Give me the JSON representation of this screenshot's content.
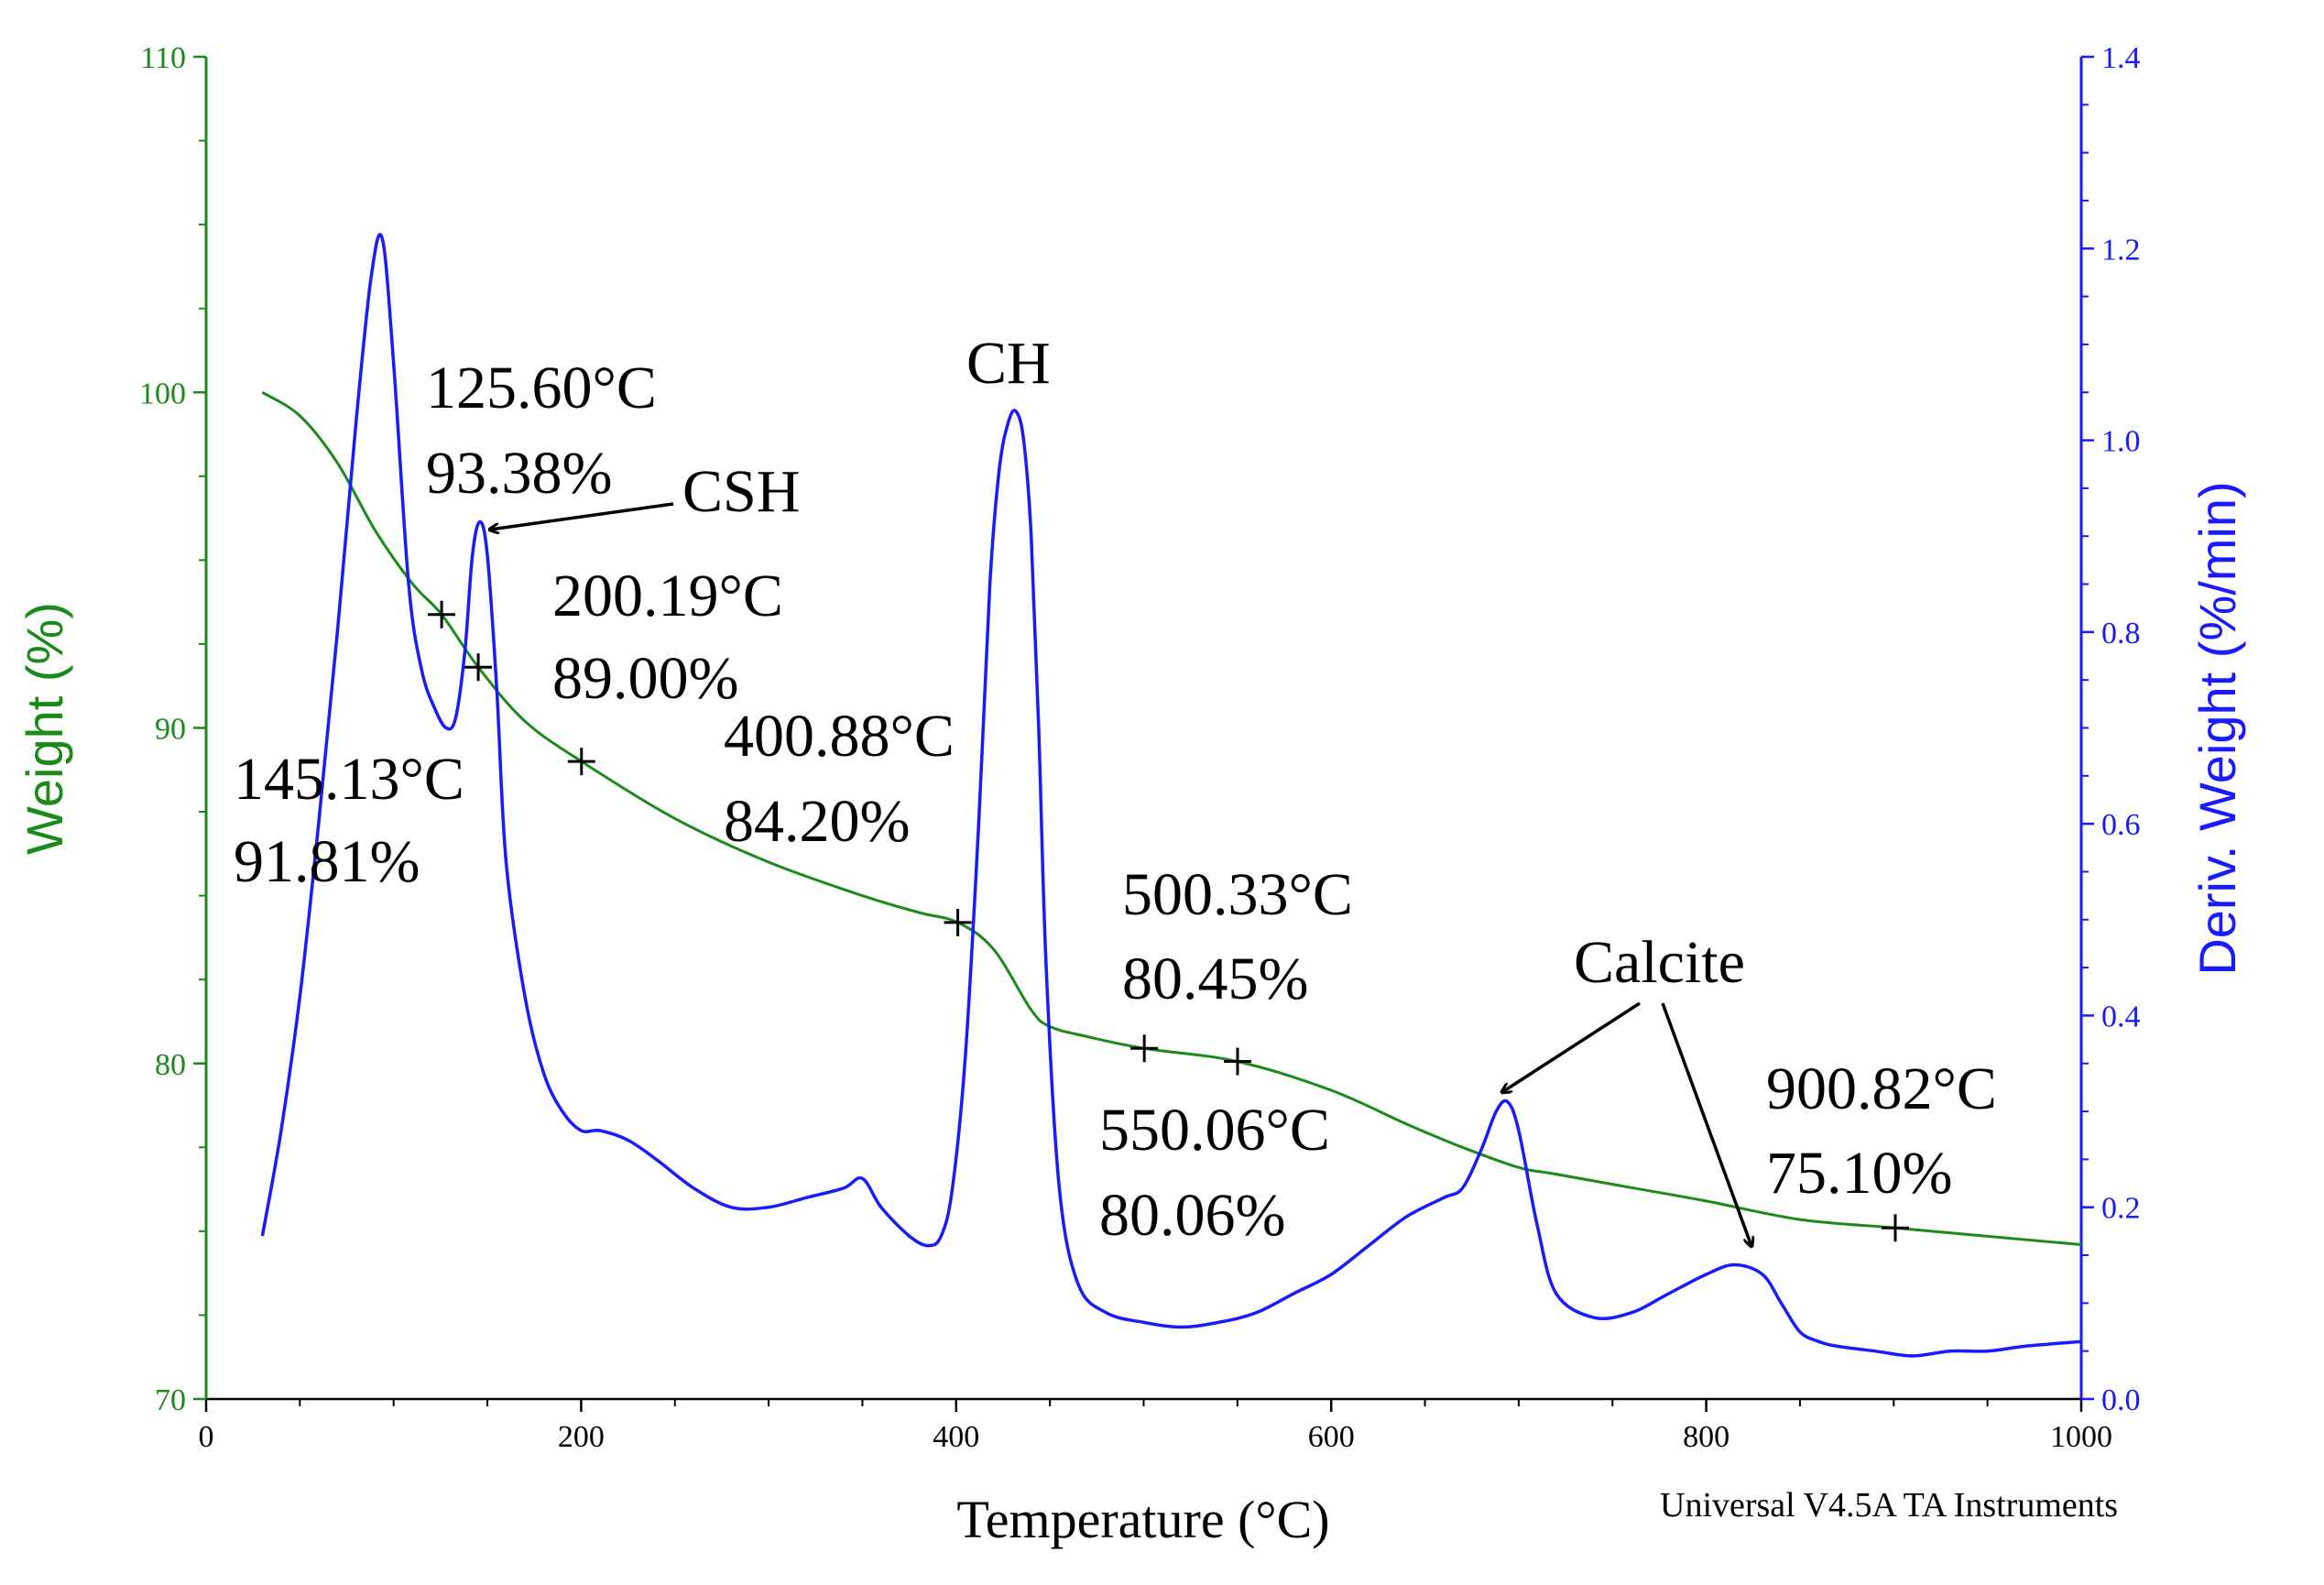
{
  "colors": {
    "weight": "#1a8a1a",
    "deriv": "#1a1aff",
    "text": "#000000",
    "background": "#ffffff"
  },
  "chart_data": {
    "type": "line",
    "xlabel": "Temperature (°C)",
    "ylabel_left": "Weight (%)",
    "ylabel_right": "Deriv. Weight (%/min)",
    "xlim": [
      0,
      1000
    ],
    "ylim_left": [
      70,
      110
    ],
    "ylim_right": [
      0.0,
      1.4
    ],
    "x_ticks": [
      "0",
      "200",
      "400",
      "600",
      "800",
      "1000"
    ],
    "y_left_ticks": [
      "70",
      "80",
      "90",
      "100",
      "110"
    ],
    "y_right_ticks": [
      "0.0",
      "0.2",
      "0.4",
      "0.6",
      "0.8",
      "1.0",
      "1.2",
      "1.4"
    ],
    "footer": "Universal V4.5A TA Instruments",
    "series": [
      {
        "name": "Weight (%)",
        "axis": "left",
        "x": [
          30,
          50,
          70,
          90,
          110,
          125.6,
          145.13,
          170,
          200.19,
          250,
          300,
          350,
          380,
          400.88,
          420,
          440,
          450,
          470,
          500.33,
          550.06,
          600,
          640,
          670,
          700,
          720,
          760,
          800,
          850,
          900.82,
          950,
          1000
        ],
        "y": [
          100,
          99.3,
          97.9,
          95.9,
          94.3,
          93.38,
          91.81,
          90.2,
          89.0,
          87.3,
          86.0,
          85.0,
          84.5,
          84.2,
          83.4,
          81.6,
          81.1,
          80.8,
          80.45,
          80.06,
          79.2,
          78.2,
          77.5,
          76.9,
          76.7,
          76.3,
          75.9,
          75.35,
          75.1,
          74.85,
          74.6
        ]
      },
      {
        "name": "Deriv. Weight (%/min)",
        "axis": "right",
        "x": [
          30,
          40,
          50,
          60,
          70,
          80,
          88,
          94,
          100,
          108,
          115,
          122,
          128,
          133,
          138,
          142,
          146,
          150,
          155,
          160,
          170,
          180,
          190,
          200,
          210,
          225,
          240,
          260,
          280,
          300,
          320,
          340,
          350,
          360,
          375,
          385,
          392,
          398,
          405,
          412,
          418,
          423,
          428,
          432,
          436,
          440,
          444,
          448,
          455,
          465,
          480,
          500,
          520,
          540,
          560,
          580,
          600,
          620,
          640,
          660,
          670,
          680,
          688,
          694,
          700,
          710,
          720,
          740,
          760,
          780,
          800,
          815,
          830,
          840,
          850,
          860,
          870,
          890,
          910,
          930,
          950,
          970,
          1000
        ],
        "y": [
          0.17,
          0.28,
          0.42,
          0.6,
          0.8,
          1.02,
          1.17,
          1.21,
          1.08,
          0.85,
          0.76,
          0.72,
          0.7,
          0.71,
          0.78,
          0.88,
          0.915,
          0.88,
          0.74,
          0.56,
          0.42,
          0.34,
          0.3,
          0.28,
          0.28,
          0.27,
          0.25,
          0.22,
          0.2,
          0.2,
          0.21,
          0.22,
          0.23,
          0.2,
          0.17,
          0.16,
          0.17,
          0.22,
          0.36,
          0.6,
          0.85,
          0.97,
          1.02,
          1.03,
          1.0,
          0.9,
          0.7,
          0.45,
          0.22,
          0.12,
          0.09,
          0.08,
          0.075,
          0.08,
          0.09,
          0.11,
          0.13,
          0.16,
          0.19,
          0.21,
          0.22,
          0.26,
          0.3,
          0.31,
          0.28,
          0.18,
          0.11,
          0.085,
          0.09,
          0.11,
          0.13,
          0.14,
          0.13,
          0.1,
          0.07,
          0.06,
          0.055,
          0.05,
          0.045,
          0.05,
          0.05,
          0.055,
          0.06
        ]
      }
    ],
    "markers": [
      {
        "x": 125.6,
        "y": 93.38
      },
      {
        "x": 145.13,
        "y": 91.81
      },
      {
        "x": 200.19,
        "y": 89.0
      },
      {
        "x": 400.88,
        "y": 84.2
      },
      {
        "x": 500.33,
        "y": 80.45
      },
      {
        "x": 550.06,
        "y": 80.06
      },
      {
        "x": 900.82,
        "y": 75.1
      }
    ],
    "annotations": {
      "m1_temp": "125.60°C",
      "m1_weight": "93.38%",
      "m2_temp": "145.13°C",
      "m2_weight": "91.81%",
      "m3_temp": "200.19°C",
      "m3_weight": "89.00%",
      "m4_temp": "400.88°C",
      "m4_weight": "84.20%",
      "m5_temp": "500.33°C",
      "m5_weight": "80.45%",
      "m6_temp": "550.06°C",
      "m6_weight": "80.06%",
      "m7_temp": "900.82°C",
      "m7_weight": "75.10%",
      "csh": "CSH",
      "ch": "CH",
      "calcite": "Calcite"
    }
  }
}
